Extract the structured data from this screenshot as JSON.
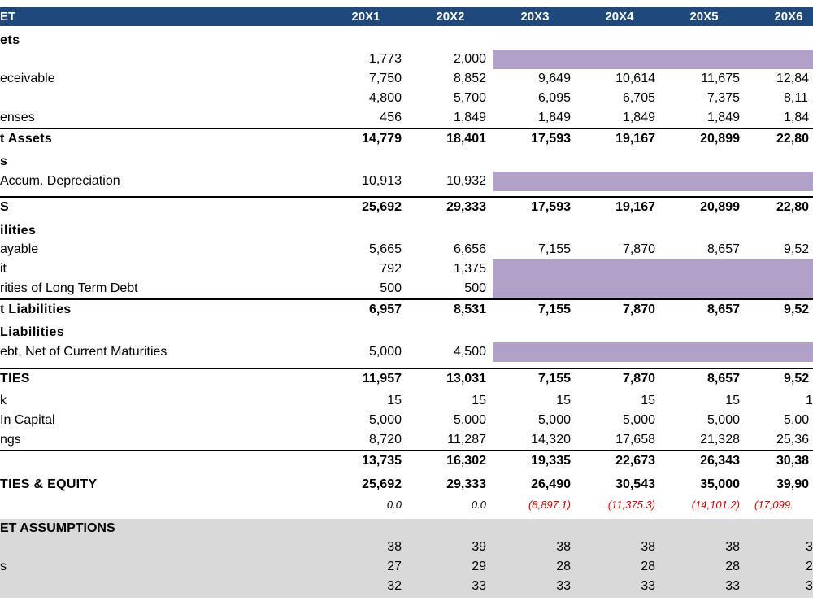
{
  "header": {
    "title": "ET",
    "years": [
      "20X1",
      "20X2",
      "20X3",
      "20X4",
      "20X5",
      "20X6"
    ]
  },
  "colors": {
    "header": "#1f497d",
    "input_shade": "#b1a0c7",
    "band": "#d9d9d9",
    "negative": "#e00000"
  },
  "rows": [
    {
      "kind": "section",
      "label": "ets",
      "values": [
        "",
        "",
        "",
        "",
        "",
        ""
      ]
    },
    {
      "kind": "item",
      "label": "",
      "values": [
        "1,773",
        "2,000",
        "",
        "",
        "",
        ""
      ],
      "shaded": true
    },
    {
      "kind": "item",
      "label": "eceivable",
      "values": [
        "7,750",
        "8,852",
        "9,649",
        "10,614",
        "11,675",
        "12,84"
      ]
    },
    {
      "kind": "item",
      "label": "",
      "values": [
        "4,800",
        "5,700",
        "6,095",
        "6,705",
        "7,375",
        "8,11"
      ]
    },
    {
      "kind": "item",
      "label": "enses",
      "values": [
        "456",
        "1,849",
        "1,849",
        "1,849",
        "1,849",
        "1,84"
      ]
    },
    {
      "kind": "total",
      "label": "t Assets",
      "values": [
        "14,779",
        "18,401",
        "17,593",
        "19,167",
        "20,899",
        "22,80"
      ]
    },
    {
      "kind": "section",
      "label": "s",
      "values": [
        "",
        "",
        "",
        "",
        "",
        ""
      ]
    },
    {
      "kind": "item",
      "label": " Accum. Depreciation",
      "values": [
        "10,913",
        "10,932",
        "",
        "",
        "",
        ""
      ],
      "shaded": true
    },
    {
      "kind": "total",
      "label": "S",
      "values": [
        "25,692",
        "29,333",
        "17,593",
        "19,167",
        "20,899",
        "22,80"
      ]
    },
    {
      "kind": "section",
      "label": "ilities",
      "values": [
        "",
        "",
        "",
        "",
        "",
        ""
      ]
    },
    {
      "kind": "item",
      "label": "ayable",
      "values": [
        "5,665",
        "6,656",
        "7,155",
        "7,870",
        "8,657",
        "9,52"
      ]
    },
    {
      "kind": "item",
      "label": "it",
      "values": [
        "792",
        "1,375",
        "",
        "",
        "",
        ""
      ],
      "shaded": true
    },
    {
      "kind": "item",
      "label": "rities of Long Term Debt",
      "values": [
        "500",
        "500",
        "",
        "",
        "",
        ""
      ],
      "shaded": true
    },
    {
      "kind": "total",
      "label": "t Liabilities",
      "values": [
        "6,957",
        "8,531",
        "7,155",
        "7,870",
        "8,657",
        "9,52"
      ]
    },
    {
      "kind": "section",
      "label": "Liabilities",
      "values": [
        "",
        "",
        "",
        "",
        "",
        ""
      ]
    },
    {
      "kind": "item",
      "label": "ebt, Net of Current Maturities",
      "values": [
        "5,000",
        "4,500",
        "",
        "",
        "",
        ""
      ],
      "shaded": true
    },
    {
      "kind": "total",
      "label": "TIES",
      "values": [
        "11,957",
        "13,031",
        "7,155",
        "7,870",
        "8,657",
        "9,52"
      ]
    },
    {
      "kind": "item",
      "label": "k",
      "values": [
        "15",
        "15",
        "15",
        "15",
        "15",
        "1"
      ]
    },
    {
      "kind": "item",
      "label": " In Capital",
      "values": [
        "5,000",
        "5,000",
        "5,000",
        "5,000",
        "5,000",
        "5,00"
      ]
    },
    {
      "kind": "item",
      "label": "ngs",
      "values": [
        "8,720",
        "11,287",
        "14,320",
        "17,658",
        "21,328",
        "25,36"
      ]
    },
    {
      "kind": "total",
      "label": "",
      "values": [
        "13,735",
        "16,302",
        "19,335",
        "22,673",
        "26,343",
        "30,38"
      ]
    },
    {
      "kind": "bold",
      "label": "TIES & EQUITY",
      "values": [
        "25,692",
        "29,333",
        "26,490",
        "30,543",
        "35,000",
        "39,90"
      ]
    },
    {
      "kind": "italic",
      "label": "",
      "values": [
        "0.0",
        "0.0",
        "(8,897.1)",
        "(11,375.3)",
        "(14,101.2)",
        "(17,099."
      ]
    },
    {
      "kind": "assump-head",
      "label": "ET ASSUMPTIONS",
      "values": [
        "",
        "",
        "",
        "",
        "",
        ""
      ]
    },
    {
      "kind": "item",
      "label": "",
      "values": [
        "38",
        "39",
        "38",
        "38",
        "38",
        "3"
      ]
    },
    {
      "kind": "item",
      "label": "s",
      "values": [
        "27",
        "29",
        "28",
        "28",
        "28",
        "2"
      ]
    },
    {
      "kind": "item",
      "label": "",
      "values": [
        "32",
        "33",
        "33",
        "33",
        "33",
        "3"
      ]
    }
  ]
}
